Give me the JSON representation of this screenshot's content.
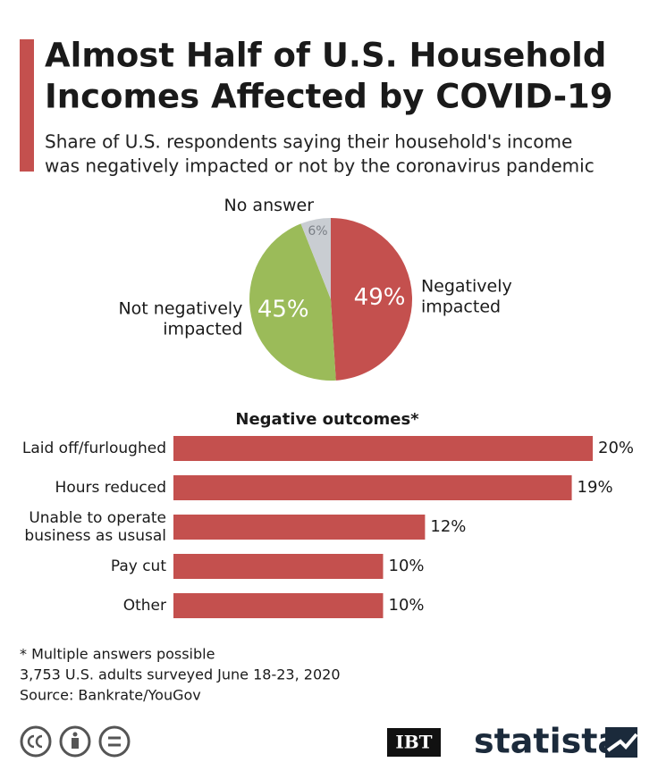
{
  "header": {
    "title_lines": [
      "Almost Half of U.S. Household",
      "Incomes Affected by COVID-19"
    ],
    "subtitle_lines": [
      "Share of U.S. respondents saying their household's income",
      "was negatively impacted or not by the coronavirus pandemic"
    ]
  },
  "chart_data": [
    {
      "type": "pie",
      "categories": [
        "Negatively impacted",
        "Not negatively impacted",
        "No answer"
      ],
      "values": [
        49,
        45,
        6
      ],
      "value_labels": [
        "49%",
        "45%",
        "6%"
      ],
      "colors": [
        "#c4504e",
        "#9bbb59",
        "#c9cdd2"
      ],
      "value_label_colors": [
        "#ffffff",
        "#ffffff",
        "#7a7f86"
      ]
    },
    {
      "type": "bar",
      "title": "Negative outcomes*",
      "categories": [
        "Laid off/furloughed",
        "Hours reduced",
        "Unable to operate business as ususal",
        "Pay cut",
        "Other"
      ],
      "values": [
        20,
        19,
        12,
        10,
        10
      ],
      "value_labels": [
        "20%",
        "19%",
        "12%",
        "10%",
        "10%"
      ],
      "color": "#c4504e"
    }
  ],
  "notes": [
    "* Multiple answers possible",
    "3,753 U.S. adults surveyed June 18-23, 2020",
    "Source: Bankrate/YouGov"
  ],
  "logos": {
    "ibt": "IBT",
    "statista": "statista"
  }
}
